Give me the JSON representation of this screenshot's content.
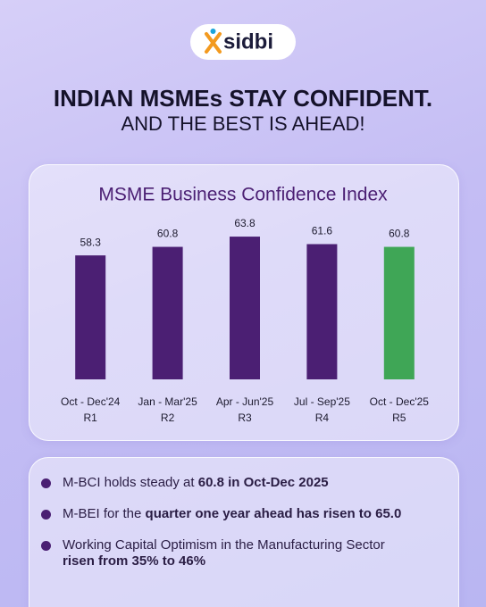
{
  "header": {
    "logo": "sidbi",
    "title": "INDIAN MSMEs STAY CONFIDENT.",
    "subtitle": "AND THE BEST IS AHEAD!"
  },
  "chart_data": {
    "type": "bar",
    "title": "MSME Business Confidence Index",
    "categories": [
      "Oct - Dec'24",
      "Jan - Mar'25",
      "Apr - Jun'25",
      "Jul - Sep'25",
      "Oct - Dec'25"
    ],
    "rounds": [
      "R1",
      "R2",
      "R3",
      "R4",
      "R5"
    ],
    "values": [
      58.3,
      60.8,
      63.8,
      61.6,
      60.8
    ],
    "colors": [
      "#4b1f73",
      "#4b1f73",
      "#4b1f73",
      "#4b1f73",
      "#3fa656"
    ],
    "ylim": [
      22,
      68
    ]
  },
  "bullets": [
    {
      "text": "M-BCI holds steady at ",
      "bold": "60.8 in Oct-Dec 2025"
    },
    {
      "text": "M-BEI for the ",
      "bold": "quarter one year ahead has risen to 65.0"
    },
    {
      "text": "Working Capital Optimism in the Manufacturing Sector ",
      "bold": "risen from 35% to 46%"
    }
  ]
}
